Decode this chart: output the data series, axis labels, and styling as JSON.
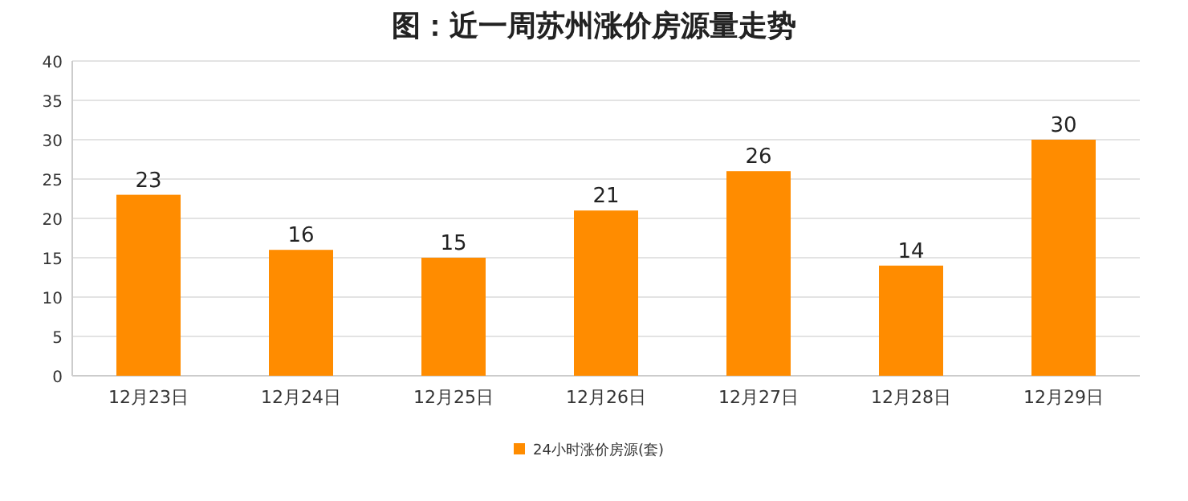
{
  "chart_data": {
    "type": "bar",
    "title": "图：近一周苏州涨价房源量走势",
    "categories": [
      "12月23日",
      "12月24日",
      "12月25日",
      "12月26日",
      "12月27日",
      "12月28日",
      "12月29日"
    ],
    "series": [
      {
        "name": "24小时涨价房源(套)",
        "color": "#ff8c00",
        "values": [
          23,
          16,
          15,
          21,
          26,
          14,
          30
        ]
      }
    ],
    "ylim": [
      0,
      40
    ],
    "yticks": [
      0,
      5,
      10,
      15,
      20,
      25,
      30,
      35,
      40
    ],
    "grid": "y",
    "legend": "bottom",
    "data_labels": true
  }
}
